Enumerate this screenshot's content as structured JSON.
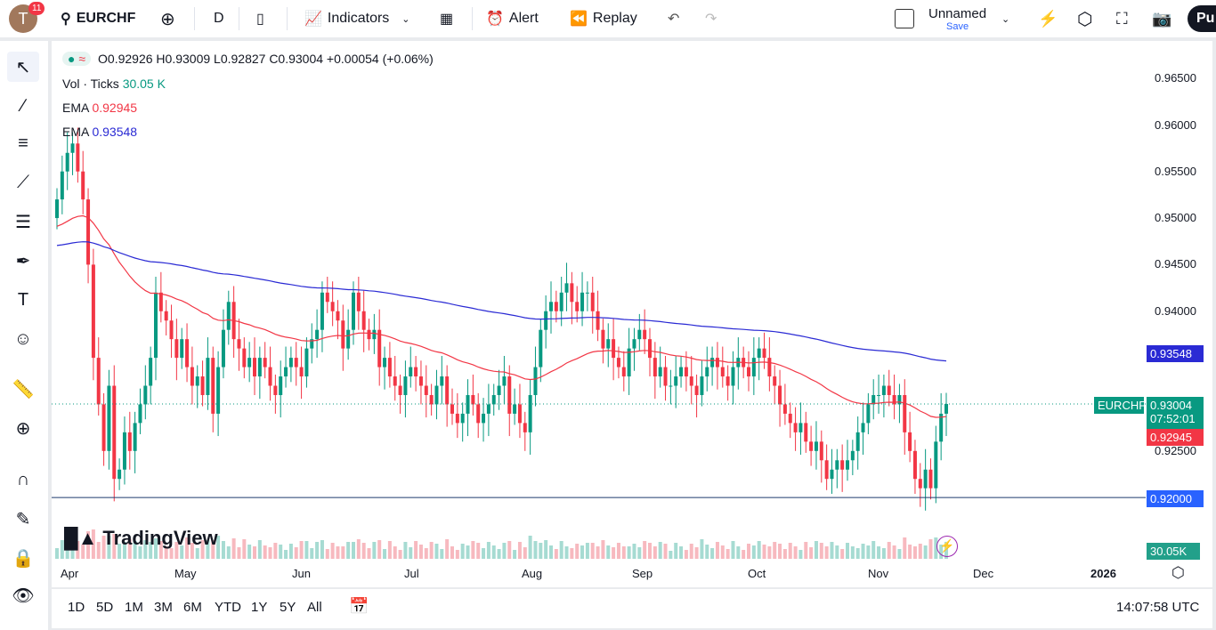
{
  "header": {
    "avatar_letter": "T",
    "notifications": "11",
    "symbol": "EURCHF",
    "interval": "D",
    "indicators": "Indicators",
    "alert": "Alert",
    "replay": "Replay",
    "layout_name": "Unnamed",
    "save": "Save",
    "publish": "Pu"
  },
  "legend": {
    "ohlc": "O0.92926 H0.93009 L0.92827 C0.93004 +0.00054 (+0.06%)",
    "vol_label": "Vol · Ticks",
    "vol_value": "30.05 K",
    "ema1_label": "EMA",
    "ema1_value": "0.92945",
    "ema2_label": "EMA",
    "ema2_value": "0.93548"
  },
  "price_axis": [
    "0.96500",
    "0.96000",
    "0.95500",
    "0.95000",
    "0.94500",
    "0.94000",
    "0.92500"
  ],
  "tags": {
    "ema2": "0.93548",
    "symbol": "EURCHF",
    "price": "0.93004",
    "countdown": "07:52:01",
    "ema1": "0.92945",
    "hline": "0.92000",
    "volume": "30.05K"
  },
  "time_axis": [
    "Apr",
    "May",
    "Jun",
    "Jul",
    "Aug",
    "Sep",
    "Oct",
    "Nov",
    "Dec",
    "2026"
  ],
  "ranges": [
    "1D",
    "5D",
    "1M",
    "3M",
    "6M",
    "YTD",
    "1Y",
    "5Y",
    "All"
  ],
  "clock": "14:07:58 UTC",
  "brand": "TradingView",
  "colors": {
    "up": "#089981",
    "down": "#f23645",
    "ema_fast": "#f23645",
    "ema_slow": "#2a2ad4",
    "hline": "#2962ff"
  },
  "chart_data": {
    "type": "candlestick",
    "symbol": "EURCHF",
    "interval": "D",
    "ylim": [
      0.915,
      0.967
    ],
    "horizontal_line": 0.92,
    "last_price": 0.93004,
    "ema": [
      {
        "value": 0.92945,
        "color": "#f23645"
      },
      {
        "value": 0.93548,
        "color": "#2a2ad4"
      }
    ],
    "start": "2025-03-27",
    "closes": [
      0.952,
      0.955,
      0.957,
      0.958,
      0.955,
      0.952,
      0.945,
      0.935,
      0.93,
      0.925,
      0.932,
      0.922,
      0.923,
      0.927,
      0.925,
      0.928,
      0.93,
      0.932,
      0.935,
      0.942,
      0.94,
      0.939,
      0.937,
      0.935,
      0.937,
      0.934,
      0.932,
      0.933,
      0.931,
      0.935,
      0.929,
      0.934,
      0.938,
      0.941,
      0.937,
      0.936,
      0.934,
      0.935,
      0.933,
      0.935,
      0.934,
      0.932,
      0.931,
      0.933,
      0.934,
      0.935,
      0.934,
      0.933,
      0.936,
      0.937,
      0.938,
      0.942,
      0.941,
      0.94,
      0.939,
      0.936,
      0.938,
      0.942,
      0.94,
      0.938,
      0.937,
      0.938,
      0.934,
      0.935,
      0.933,
      0.932,
      0.931,
      0.933,
      0.934,
      0.933,
      0.932,
      0.931,
      0.93,
      0.932,
      0.933,
      0.93,
      0.929,
      0.928,
      0.929,
      0.931,
      0.93,
      0.928,
      0.929,
      0.93,
      0.931,
      0.932,
      0.933,
      0.929,
      0.93,
      0.928,
      0.927,
      0.931,
      0.934,
      0.938,
      0.94,
      0.941,
      0.94,
      0.942,
      0.943,
      0.941,
      0.94,
      0.942,
      0.942,
      0.94,
      0.938,
      0.936,
      0.937,
      0.935,
      0.934,
      0.933,
      0.936,
      0.937,
      0.938,
      0.937,
      0.935,
      0.933,
      0.934,
      0.932,
      0.932,
      0.933,
      0.934,
      0.933,
      0.932,
      0.931,
      0.933,
      0.934,
      0.935,
      0.934,
      0.933,
      0.932,
      0.934,
      0.935,
      0.934,
      0.933,
      0.935,
      0.936,
      0.935,
      0.933,
      0.932,
      0.93,
      0.929,
      0.928,
      0.927,
      0.928,
      0.926,
      0.925,
      0.926,
      0.924,
      0.922,
      0.923,
      0.924,
      0.923,
      0.924,
      0.925,
      0.927,
      0.928,
      0.93,
      0.931,
      0.931,
      0.932,
      0.931,
      0.93,
      0.931,
      0.927,
      0.925,
      0.922,
      0.921,
      0.923,
      0.921,
      0.926,
      0.929,
      0.93004
    ]
  }
}
